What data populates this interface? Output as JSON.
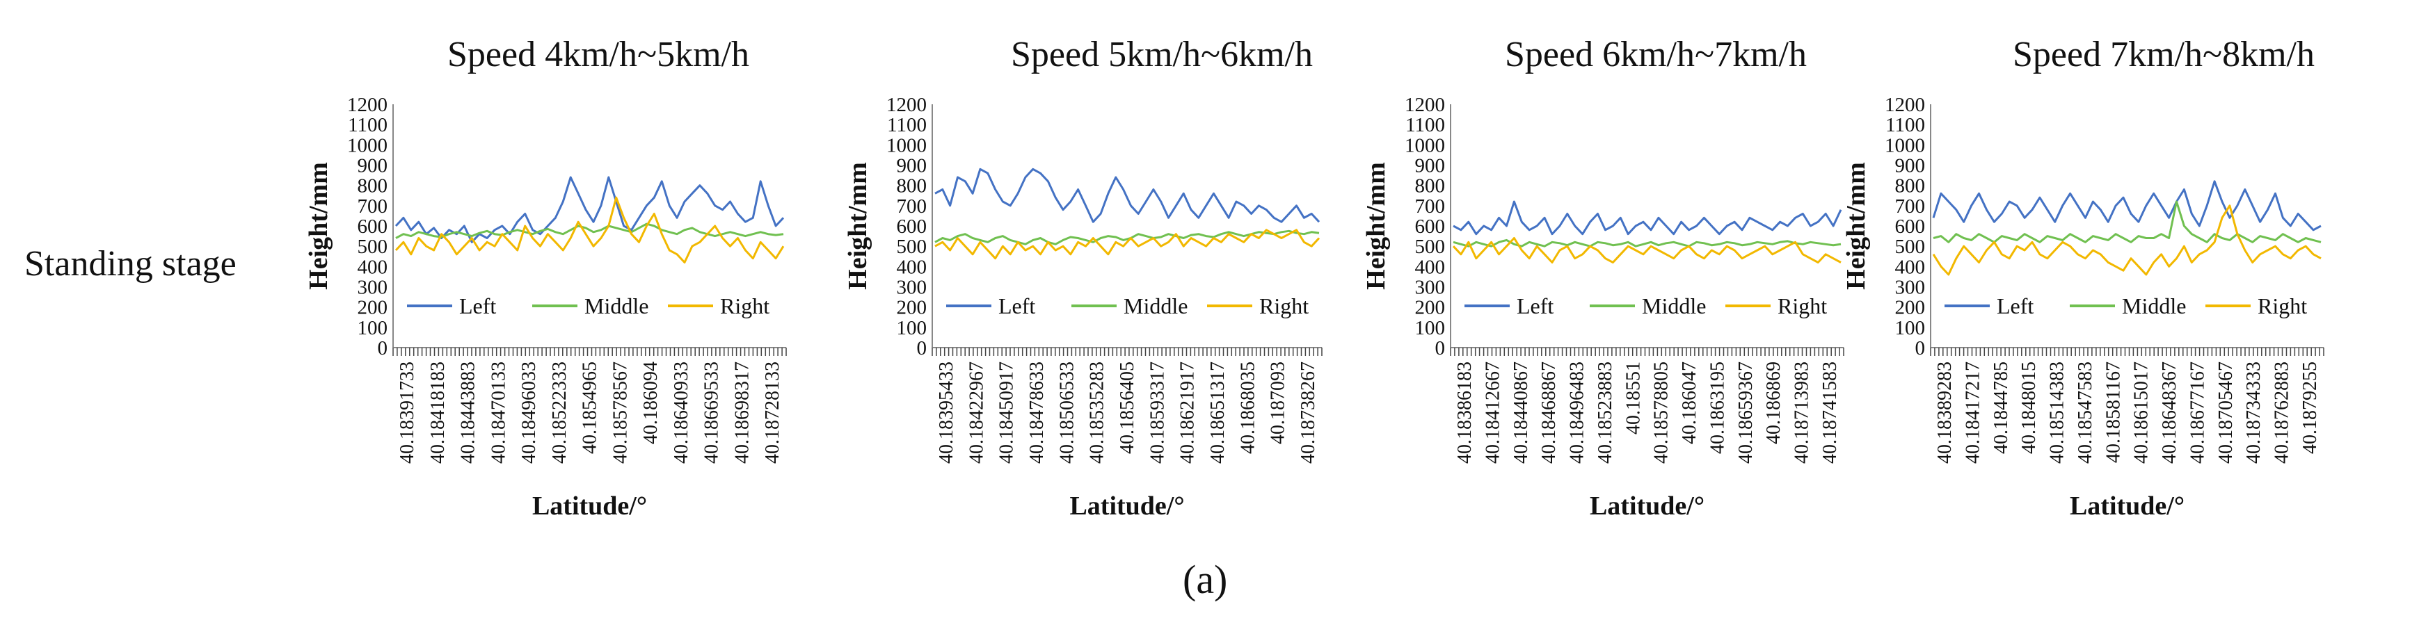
{
  "row_label": "Standing stage",
  "figure_caption": "(a)",
  "colors": {
    "Left": "#4472C4",
    "Middle": "#70C050",
    "Right": "#F2B800"
  },
  "chart_data": [
    {
      "type": "line",
      "title": "Speed 4km/h~5km/h",
      "xlabel": "Latitude/°",
      "ylabel": "Height/mm",
      "ylim": [
        0,
        1200
      ],
      "yticks": [
        0,
        100,
        200,
        300,
        400,
        500,
        600,
        700,
        800,
        900,
        1000,
        1100,
        1200
      ],
      "x_tick_labels": [
        "40.18391733",
        "40.18418183",
        "40.18443883",
        "40.18470133",
        "40.18496033",
        "40.18522333",
        "40.1854965",
        "40.18578567",
        "40.186094",
        "40.18640933",
        "40.18669533",
        "40.18698317",
        "40.18728133"
      ],
      "legend": "bottom",
      "grid": false,
      "series": [
        {
          "name": "Left",
          "values": [
            600,
            640,
            580,
            620,
            560,
            590,
            540,
            580,
            560,
            600,
            520,
            560,
            540,
            580,
            600,
            560,
            620,
            660,
            580,
            560,
            600,
            640,
            720,
            840,
            760,
            680,
            620,
            700,
            840,
            720,
            600,
            580,
            640,
            700,
            740,
            820,
            700,
            640,
            720,
            760,
            800,
            760,
            700,
            680,
            720,
            660,
            620,
            640,
            820,
            700,
            600,
            640
          ]
        },
        {
          "name": "Middle",
          "values": [
            540,
            560,
            550,
            570,
            560,
            550,
            545,
            560,
            570,
            560,
            550,
            565,
            575,
            560,
            555,
            570,
            580,
            570,
            560,
            575,
            585,
            570,
            560,
            580,
            600,
            590,
            570,
            580,
            600,
            590,
            580,
            570,
            590,
            610,
            600,
            580,
            570,
            560,
            580,
            590,
            570,
            560,
            550,
            560,
            570,
            560,
            550,
            560,
            570,
            560,
            555,
            560
          ]
        },
        {
          "name": "Right",
          "values": [
            480,
            520,
            460,
            540,
            500,
            480,
            560,
            520,
            460,
            500,
            540,
            480,
            520,
            500,
            560,
            520,
            480,
            600,
            540,
            500,
            560,
            520,
            480,
            540,
            620,
            560,
            500,
            540,
            600,
            740,
            640,
            560,
            520,
            600,
            660,
            560,
            480,
            460,
            420,
            500,
            520,
            560,
            600,
            540,
            500,
            540,
            480,
            440,
            520,
            480,
            440,
            500
          ]
        }
      ]
    },
    {
      "type": "line",
      "title": "Speed 5km/h~6km/h",
      "xlabel": "Latitude/°",
      "ylabel": "Height/mm",
      "ylim": [
        0,
        1200
      ],
      "yticks": [
        0,
        100,
        200,
        300,
        400,
        500,
        600,
        700,
        800,
        900,
        1000,
        1100,
        1200
      ],
      "x_tick_labels": [
        "40.18395433",
        "40.18422967",
        "40.18450917",
        "40.18478633",
        "40.18506533",
        "40.18535283",
        "40.1856405",
        "40.18593317",
        "40.18621917",
        "40.18651317",
        "40.1868035",
        "40.187093",
        "40.18738267"
      ],
      "legend": "bottom",
      "grid": false,
      "series": [
        {
          "name": "Left",
          "values": [
            760,
            780,
            700,
            840,
            820,
            760,
            880,
            860,
            780,
            720,
            700,
            760,
            840,
            880,
            860,
            820,
            740,
            680,
            720,
            780,
            700,
            620,
            660,
            760,
            840,
            780,
            700,
            660,
            720,
            780,
            720,
            640,
            700,
            760,
            680,
            640,
            700,
            760,
            700,
            640,
            720,
            700,
            660,
            700,
            680,
            640,
            620,
            660,
            700,
            640,
            660,
            620
          ]
        },
        {
          "name": "Middle",
          "values": [
            520,
            540,
            530,
            550,
            560,
            540,
            530,
            520,
            540,
            550,
            530,
            520,
            510,
            530,
            540,
            520,
            510,
            530,
            545,
            540,
            530,
            520,
            540,
            550,
            545,
            530,
            540,
            560,
            550,
            540,
            545,
            560,
            550,
            540,
            555,
            560,
            550,
            545,
            560,
            570,
            560,
            550,
            560,
            570,
            565,
            560,
            570,
            575,
            565,
            560,
            570,
            565
          ]
        },
        {
          "name": "Right",
          "values": [
            500,
            520,
            480,
            540,
            500,
            460,
            520,
            480,
            440,
            500,
            460,
            520,
            480,
            500,
            460,
            520,
            480,
            500,
            460,
            520,
            500,
            540,
            500,
            460,
            520,
            500,
            540,
            500,
            520,
            540,
            500,
            520,
            560,
            500,
            540,
            520,
            500,
            540,
            520,
            560,
            540,
            520,
            560,
            540,
            580,
            560,
            540,
            560,
            580,
            520,
            500,
            540
          ]
        }
      ]
    },
    {
      "type": "line",
      "title": "Speed 6km/h~7km/h",
      "xlabel": "Latitude/°",
      "ylabel": "Height/mm",
      "ylim": [
        0,
        1200
      ],
      "yticks": [
        0,
        100,
        200,
        300,
        400,
        500,
        600,
        700,
        800,
        900,
        1000,
        1100,
        1200
      ],
      "x_tick_labels": [
        "40.18386183",
        "40.18412667",
        "40.18440867",
        "40.18468867",
        "40.18496483",
        "40.18523883",
        "40.18551",
        "40.18578805",
        "40.186047",
        "40.1863195",
        "40.18659367",
        "40.186869",
        "40.18713983",
        "40.18741583"
      ],
      "legend": "bottom",
      "grid": false,
      "series": [
        {
          "name": "Left",
          "values": [
            600,
            580,
            620,
            560,
            600,
            580,
            640,
            600,
            720,
            620,
            580,
            600,
            640,
            560,
            600,
            660,
            600,
            560,
            620,
            660,
            580,
            600,
            640,
            560,
            600,
            620,
            580,
            640,
            600,
            560,
            620,
            580,
            600,
            640,
            600,
            560,
            600,
            620,
            580,
            640,
            620,
            600,
            580,
            620,
            600,
            640,
            660,
            600,
            620,
            660,
            600,
            680
          ]
        },
        {
          "name": "Middle",
          "values": [
            520,
            510,
            500,
            520,
            510,
            500,
            520,
            530,
            510,
            500,
            520,
            510,
            500,
            520,
            515,
            505,
            520,
            510,
            500,
            520,
            515,
            505,
            510,
            520,
            500,
            510,
            520,
            505,
            515,
            520,
            510,
            500,
            520,
            515,
            505,
            510,
            520,
            515,
            505,
            510,
            520,
            515,
            510,
            520,
            525,
            515,
            510,
            520,
            515,
            510,
            505,
            510
          ]
        },
        {
          "name": "Right",
          "values": [
            500,
            460,
            520,
            440,
            480,
            520,
            460,
            500,
            540,
            480,
            440,
            500,
            460,
            420,
            480,
            500,
            440,
            460,
            500,
            480,
            440,
            420,
            460,
            500,
            480,
            460,
            500,
            480,
            460,
            440,
            480,
            500,
            460,
            440,
            480,
            460,
            500,
            480,
            440,
            460,
            480,
            500,
            460,
            480,
            500,
            520,
            460,
            440,
            420,
            460,
            440,
            420
          ]
        }
      ]
    },
    {
      "type": "line",
      "title": "Speed 7km/h~8km/h",
      "xlabel": "Latitude/°",
      "ylabel": "Height/mm",
      "ylim": [
        0,
        1200
      ],
      "yticks": [
        0,
        100,
        200,
        300,
        400,
        500,
        600,
        700,
        800,
        900,
        1000,
        1100,
        1200
      ],
      "x_tick_labels": [
        "40.18389283",
        "40.18417217",
        "40.1844785",
        "40.1848015",
        "40.18514383",
        "40.18547583",
        "40.18581167",
        "40.18615017",
        "40.18648367",
        "40.18677167",
        "40.18705467",
        "40.18734333",
        "40.18762883",
        "40.1879255"
      ],
      "legend": "bottom",
      "grid": false,
      "series": [
        {
          "name": "Left",
          "values": [
            640,
            760,
            720,
            680,
            620,
            700,
            760,
            680,
            620,
            660,
            720,
            700,
            640,
            680,
            740,
            680,
            620,
            700,
            760,
            700,
            640,
            720,
            680,
            620,
            700,
            740,
            660,
            620,
            700,
            760,
            700,
            640,
            720,
            780,
            660,
            600,
            700,
            820,
            720,
            640,
            700,
            780,
            700,
            620,
            680,
            760,
            640,
            600,
            660,
            620,
            580,
            600
          ]
        },
        {
          "name": "Middle",
          "values": [
            540,
            550,
            520,
            560,
            540,
            530,
            560,
            540,
            520,
            550,
            540,
            530,
            560,
            540,
            520,
            550,
            540,
            530,
            560,
            540,
            520,
            550,
            540,
            530,
            560,
            540,
            520,
            550,
            540,
            540,
            560,
            540,
            720,
            600,
            560,
            540,
            520,
            560,
            540,
            530,
            560,
            540,
            520,
            550,
            540,
            530,
            560,
            540,
            520,
            540,
            530,
            520
          ]
        },
        {
          "name": "Right",
          "values": [
            460,
            400,
            360,
            440,
            500,
            460,
            420,
            480,
            520,
            460,
            440,
            500,
            480,
            520,
            460,
            440,
            480,
            520,
            500,
            460,
            440,
            480,
            460,
            420,
            400,
            380,
            440,
            400,
            360,
            420,
            460,
            400,
            440,
            500,
            420,
            460,
            480,
            520,
            640,
            700,
            560,
            480,
            420,
            460,
            480,
            500,
            460,
            440,
            480,
            500,
            460,
            440
          ]
        }
      ]
    }
  ]
}
